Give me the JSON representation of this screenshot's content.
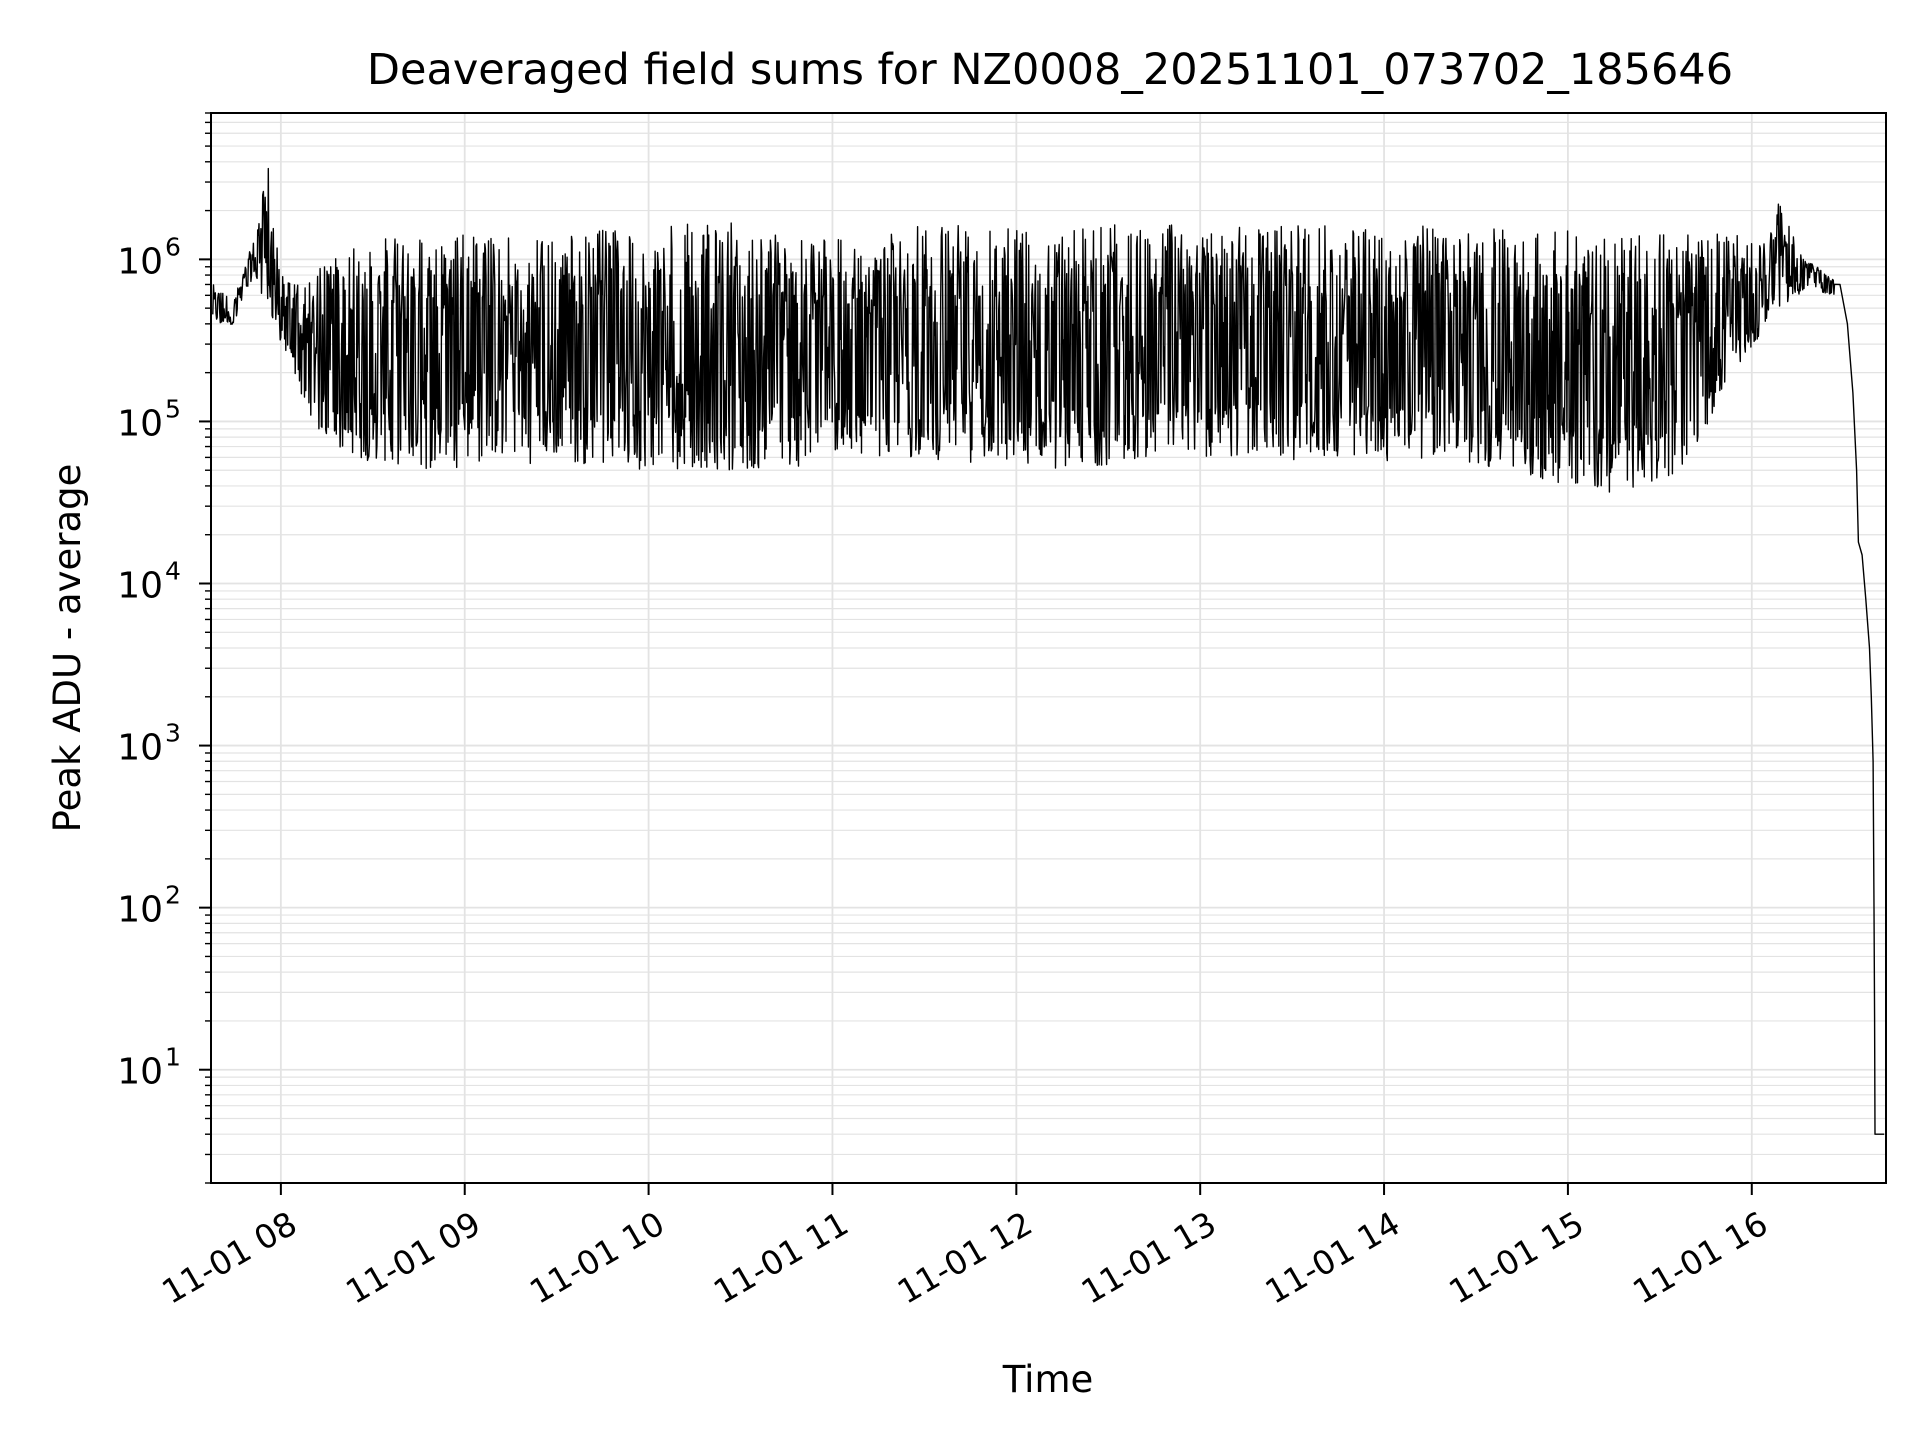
{
  "chart_data": {
    "type": "line",
    "title": "Deaveraged field sums for NZ0008_20251101_073702_185646",
    "xlabel": "Time",
    "ylabel": "Peak ADU - average",
    "yscale": "log",
    "ylim": [
      2,
      8000000
    ],
    "xlim_hours": [
      7.62,
      16.73
    ],
    "grid": true,
    "x_ticks": [
      {
        "label": "11-01 08",
        "hour": 8
      },
      {
        "label": "11-01 09",
        "hour": 9
      },
      {
        "label": "11-01 10",
        "hour": 10
      },
      {
        "label": "11-01 11",
        "hour": 11
      },
      {
        "label": "11-01 12",
        "hour": 12
      },
      {
        "label": "11-01 13",
        "hour": 13
      },
      {
        "label": "11-01 14",
        "hour": 14
      },
      {
        "label": "11-01 15",
        "hour": 15
      },
      {
        "label": "11-01 16",
        "hour": 16
      }
    ],
    "y_ticks": [
      {
        "base": "10",
        "exp": "1",
        "value": 10
      },
      {
        "base": "10",
        "exp": "2",
        "value": 100
      },
      {
        "base": "10",
        "exp": "3",
        "value": 1000
      },
      {
        "base": "10",
        "exp": "4",
        "value": 10000
      },
      {
        "base": "10",
        "exp": "5",
        "value": 100000
      },
      {
        "base": "10",
        "exp": "6",
        "value": 1000000
      }
    ],
    "series": [
      {
        "name": "Peak ADU - average",
        "color": "#000000",
        "envelope": [
          {
            "hour": 7.63,
            "low": 380000,
            "high": 700000
          },
          {
            "hour": 7.75,
            "low": 400000,
            "high": 600000
          },
          {
            "hour": 7.85,
            "low": 800000,
            "high": 1300000
          },
          {
            "hour": 7.93,
            "low": 500000,
            "high": 4000000
          },
          {
            "hour": 8.0,
            "low": 300000,
            "high": 800000
          },
          {
            "hour": 8.1,
            "low": 150000,
            "high": 700000
          },
          {
            "hour": 8.25,
            "low": 70000,
            "high": 1000000
          },
          {
            "hour": 8.5,
            "low": 55000,
            "high": 1300000
          },
          {
            "hour": 8.8,
            "low": 50000,
            "high": 1500000
          },
          {
            "hour": 9.2,
            "low": 55000,
            "high": 1400000
          },
          {
            "hour": 9.6,
            "low": 55000,
            "high": 1500000
          },
          {
            "hour": 10.0,
            "low": 50000,
            "high": 1600000
          },
          {
            "hour": 10.4,
            "low": 50000,
            "high": 1700000
          },
          {
            "hour": 10.85,
            "low": 50000,
            "high": 1500000
          },
          {
            "hour": 11.05,
            "low": 65000,
            "high": 1500000
          },
          {
            "hour": 11.2,
            "low": 60000,
            "high": 900000
          },
          {
            "hour": 11.35,
            "low": 60000,
            "high": 1600000
          },
          {
            "hour": 11.8,
            "low": 55000,
            "high": 1650000
          },
          {
            "hour": 12.3,
            "low": 50000,
            "high": 1700000
          },
          {
            "hour": 12.8,
            "low": 60000,
            "high": 1650000
          },
          {
            "hour": 13.3,
            "low": 60000,
            "high": 1600000
          },
          {
            "hour": 13.8,
            "low": 55000,
            "high": 1650000
          },
          {
            "hour": 14.3,
            "low": 60000,
            "high": 1600000
          },
          {
            "hour": 14.8,
            "low": 45000,
            "high": 1500000
          },
          {
            "hour": 15.2,
            "low": 35000,
            "high": 1500000
          },
          {
            "hour": 15.6,
            "low": 45000,
            "high": 1400000
          },
          {
            "hour": 15.85,
            "low": 150000,
            "high": 1500000
          },
          {
            "hour": 16.05,
            "low": 350000,
            "high": 1300000
          },
          {
            "hour": 16.14,
            "low": 500000,
            "high": 2300000
          },
          {
            "hour": 16.3,
            "low": 650000,
            "high": 1000000
          },
          {
            "hour": 16.45,
            "low": 600000,
            "high": 750000
          }
        ],
        "tail": [
          {
            "hour": 16.48,
            "value": 700000
          },
          {
            "hour": 16.52,
            "value": 400000
          },
          {
            "hour": 16.55,
            "value": 150000
          },
          {
            "hour": 16.57,
            "value": 50000
          },
          {
            "hour": 16.58,
            "value": 18000
          },
          {
            "hour": 16.6,
            "value": 15000
          },
          {
            "hour": 16.62,
            "value": 8000
          },
          {
            "hour": 16.64,
            "value": 4000
          },
          {
            "hour": 16.65,
            "value": 2000
          },
          {
            "hour": 16.66,
            "value": 800
          },
          {
            "hour": 16.665,
            "value": 100
          },
          {
            "hour": 16.668,
            "value": 20
          },
          {
            "hour": 16.67,
            "value": 4
          },
          {
            "hour": 16.7,
            "value": 4
          },
          {
            "hour": 16.72,
            "value": 4
          }
        ]
      }
    ]
  }
}
